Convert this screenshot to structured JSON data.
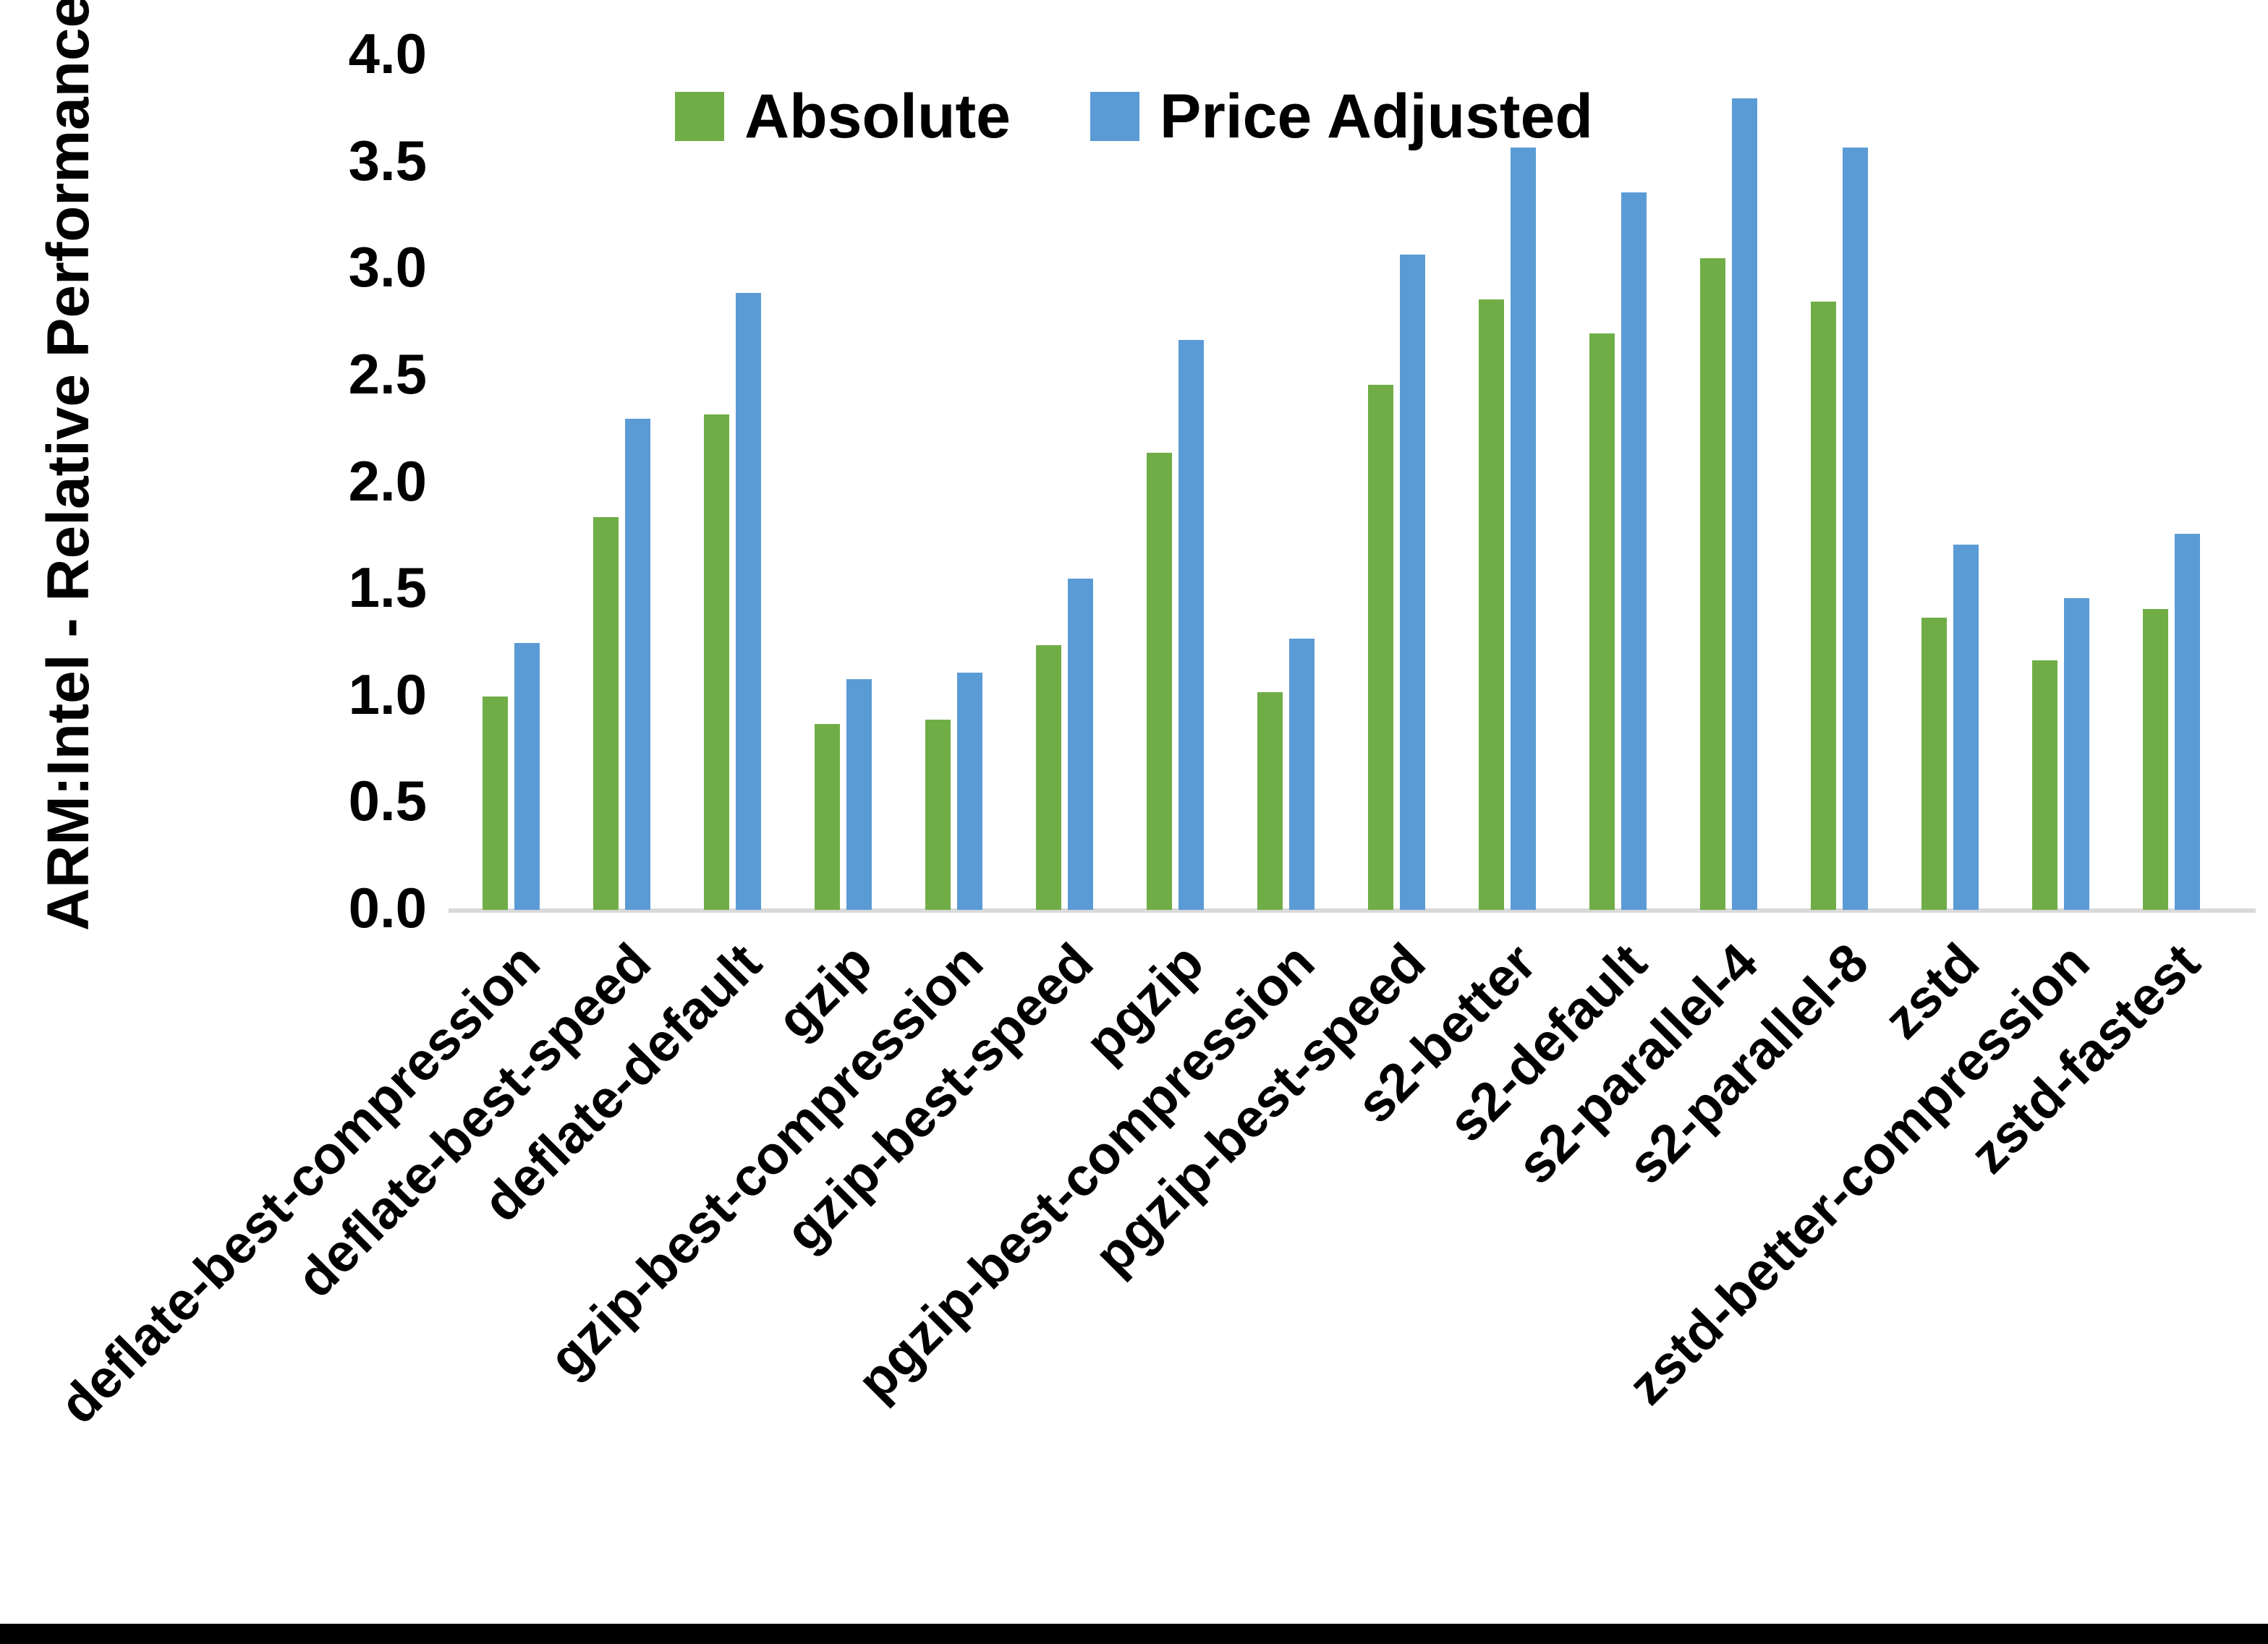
{
  "chart_data": {
    "type": "bar",
    "title": "",
    "xlabel": "",
    "ylabel": "ARM:Intel - Relative Performance",
    "ylim": [
      0.0,
      4.0
    ],
    "ytick_step": 0.5,
    "yticks": [
      "0.0",
      "0.5",
      "1.0",
      "1.5",
      "2.0",
      "2.5",
      "3.0",
      "3.5",
      "4.0"
    ],
    "grid": false,
    "legend_position": "top-center",
    "categories": [
      "deflate-best-compression",
      "deflate-best-speed",
      "deflate-default",
      "gzip",
      "gzip-best-compression",
      "gzip-best-speed",
      "pgzip",
      "pgzip-best-compression",
      "pgzip-best-speed",
      "s2-better",
      "s2-default",
      "s2-parallel-4",
      "s2-parallel-8",
      "zstd",
      "zstd-better-compression",
      "zstd-fastest"
    ],
    "series": [
      {
        "name": "Absolute",
        "color": "#70AD47",
        "values": [
          1.0,
          1.84,
          2.32,
          0.87,
          0.89,
          1.24,
          2.14,
          1.02,
          2.46,
          2.86,
          2.7,
          3.05,
          2.85,
          1.37,
          1.17,
          1.41
        ]
      },
      {
        "name": "Price Adjusted",
        "color": "#5B9BD5",
        "values": [
          1.25,
          2.3,
          2.89,
          1.08,
          1.11,
          1.55,
          2.67,
          1.27,
          3.07,
          3.57,
          3.36,
          3.8,
          3.57,
          1.71,
          1.46,
          1.76
        ]
      }
    ],
    "colors": {
      "axis_line": "#d9d9d9",
      "text": "#000000",
      "background": "#ffffff",
      "bottom_border": "#000000"
    }
  }
}
